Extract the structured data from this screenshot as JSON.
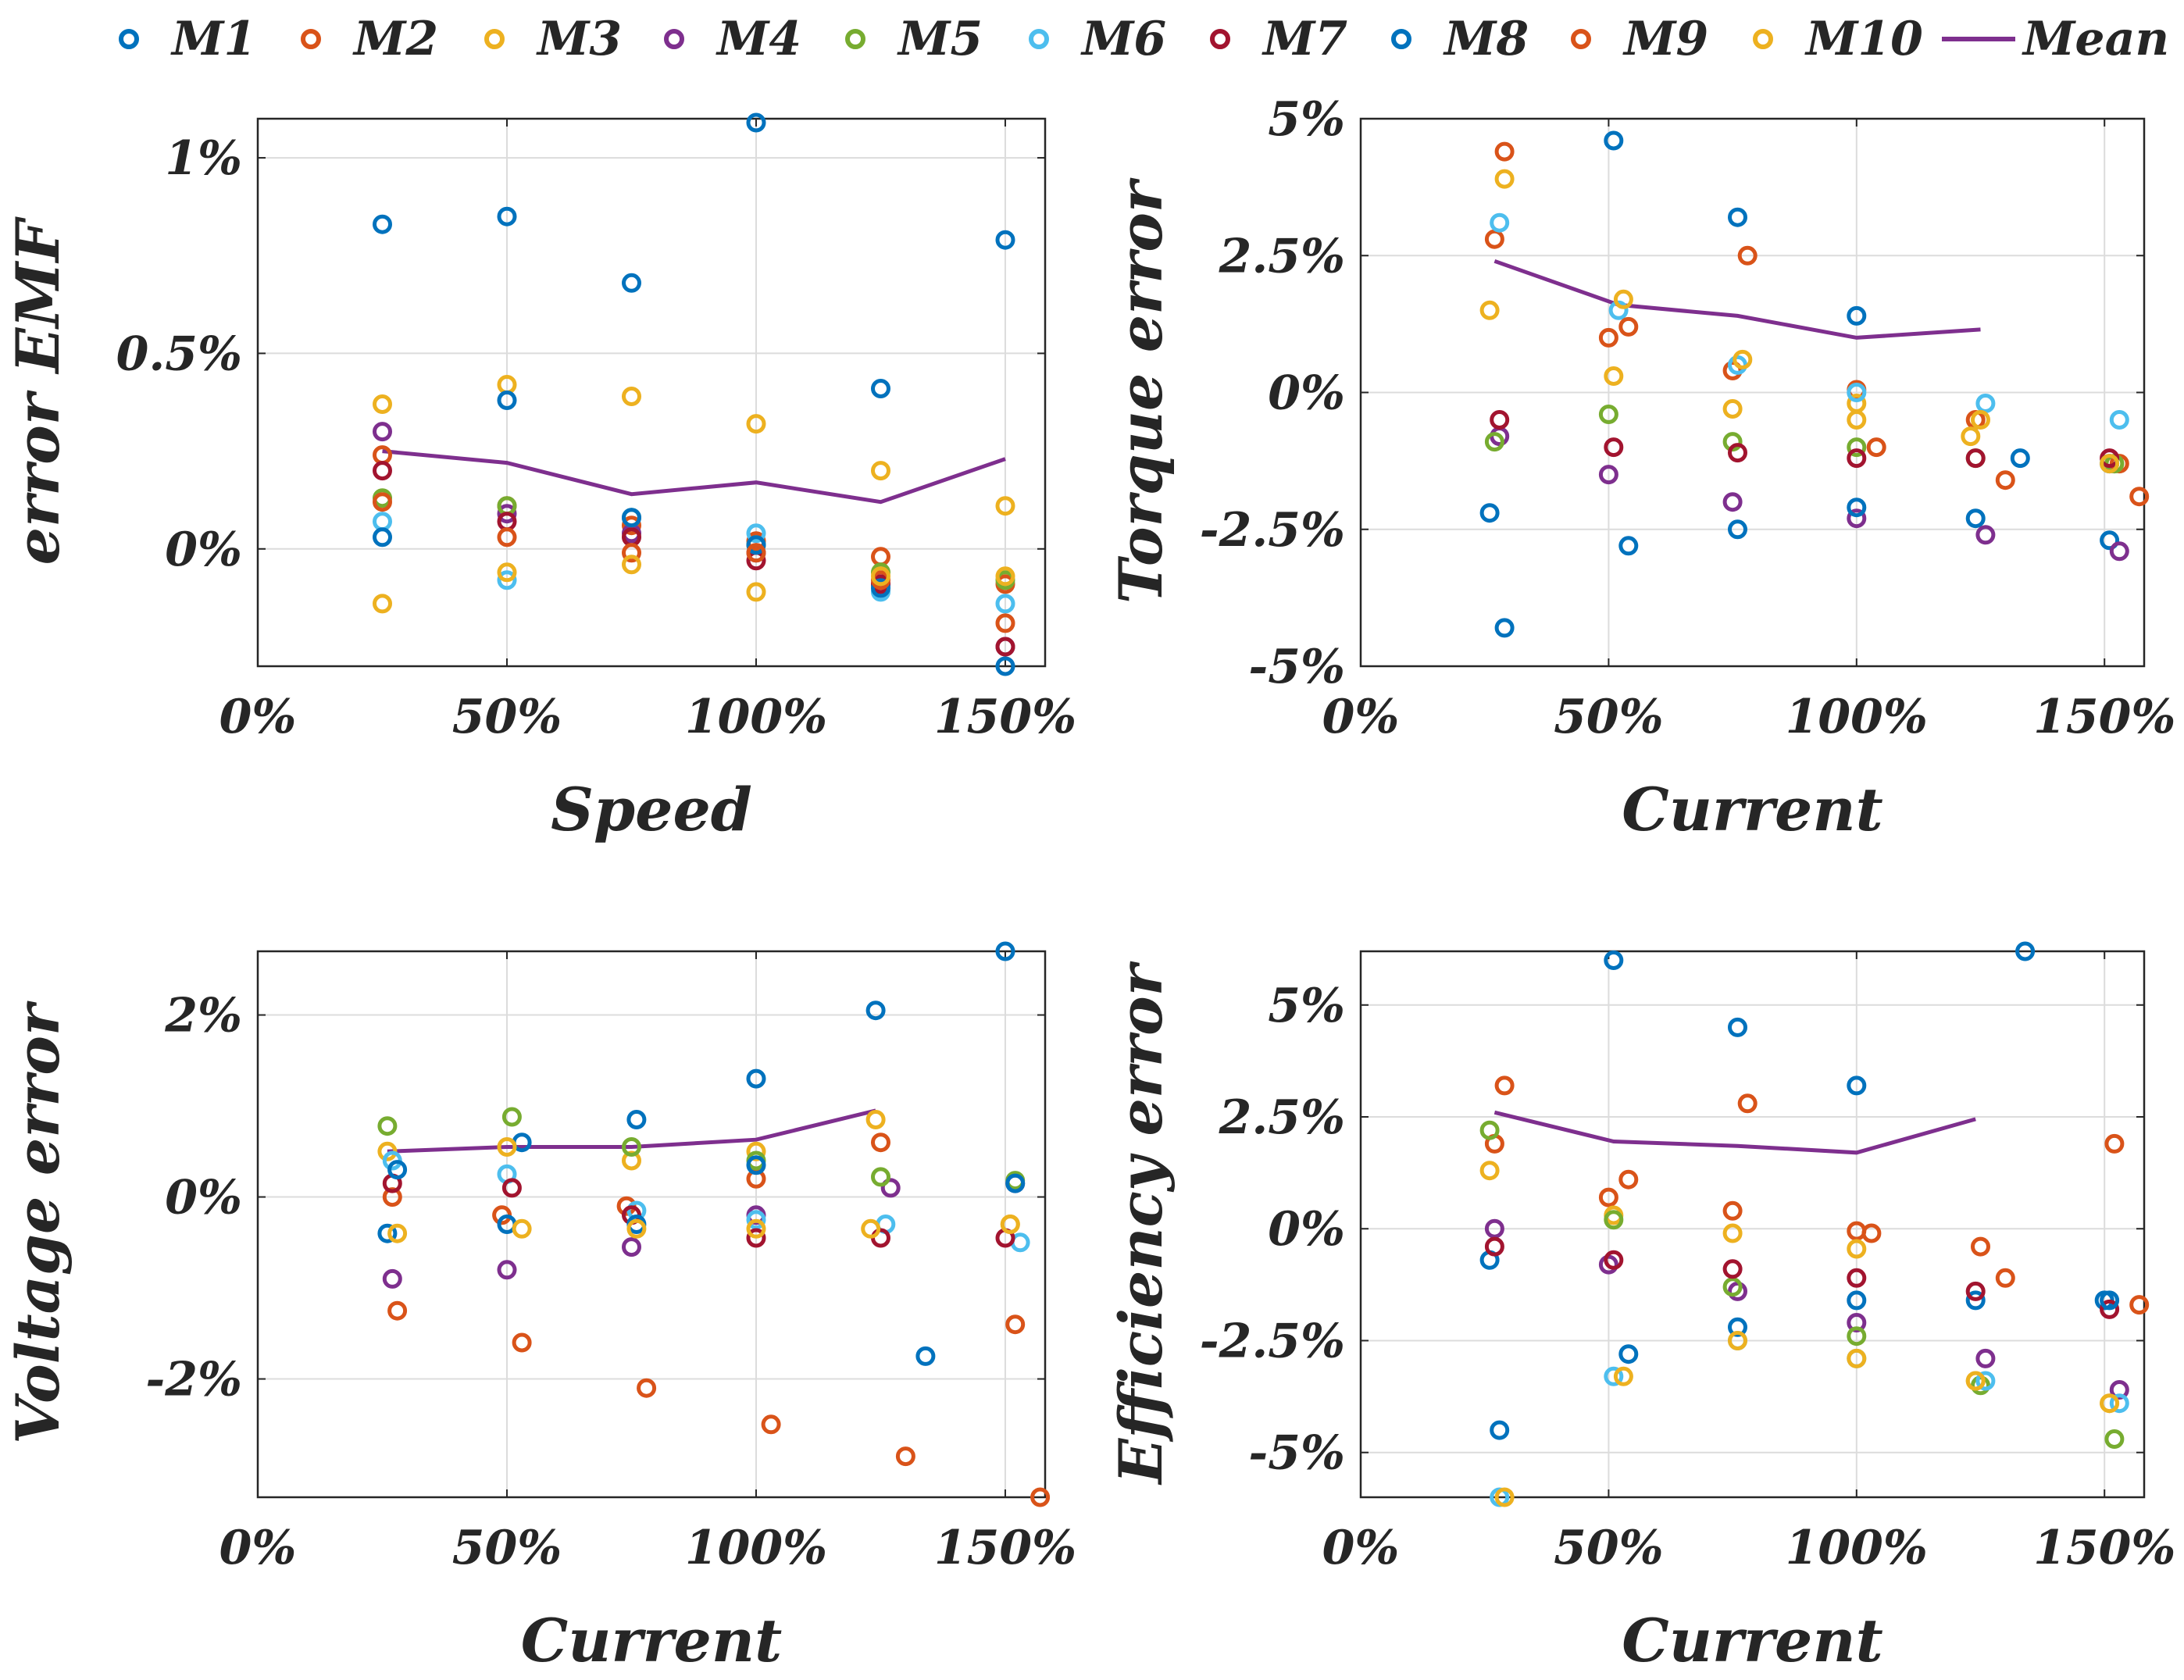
{
  "legend": {
    "entries": [
      {
        "name": "M1",
        "color": "#0072BD"
      },
      {
        "name": "M2",
        "color": "#D95319"
      },
      {
        "name": "M3",
        "color": "#EDB120"
      },
      {
        "name": "M4",
        "color": "#7E2F8E"
      },
      {
        "name": "M5",
        "color": "#77AC30"
      },
      {
        "name": "M6",
        "color": "#4DBEEE"
      },
      {
        "name": "M7",
        "color": "#A2142F"
      },
      {
        "name": "M8",
        "color": "#0072BD"
      },
      {
        "name": "M9",
        "color": "#D95319"
      },
      {
        "name": "M10",
        "color": "#EDB120"
      }
    ],
    "mean_label": "Mean",
    "mean_color": "#7E2F8E"
  },
  "chart_data": [
    {
      "type": "scatter",
      "xlabel": "Speed",
      "ylabel": "error EMF",
      "xlim": [
        0,
        158
      ],
      "ylim": [
        -0.3,
        1.1
      ],
      "xticks": [
        0,
        50,
        100,
        150
      ],
      "xtick_labels": [
        "0%",
        "50%",
        "100%",
        "150%"
      ],
      "yticks": [
        0,
        0.5,
        1
      ],
      "ytick_labels": [
        "0%",
        "0.5%",
        "1%"
      ],
      "grid": true,
      "series": [
        {
          "name": "M1",
          "x": [
            25,
            50,
            75,
            100,
            125,
            150
          ],
          "y": [
            0.83,
            0.85,
            0.68,
            1.09,
            0.41,
            0.79
          ]
        },
        {
          "name": "M2",
          "x": [
            25,
            50,
            75,
            100,
            125,
            150
          ],
          "y": [
            0.24,
            0.11,
            0.06,
            0.02,
            -0.02,
            -0.09
          ]
        },
        {
          "name": "M3",
          "x": [
            25,
            50,
            75,
            100,
            125,
            150
          ],
          "y": [
            0.37,
            0.42,
            0.39,
            0.32,
            0.2,
            0.11
          ]
        },
        {
          "name": "M4",
          "x": [
            25,
            50,
            75,
            100,
            125,
            150
          ],
          "y": [
            0.3,
            0.09,
            0.04,
            -0.01,
            -0.09,
            -0.25
          ]
        },
        {
          "name": "M5",
          "x": [
            25,
            50,
            75,
            100,
            125,
            150
          ],
          "y": [
            0.13,
            0.11,
            0.08,
            0.01,
            -0.06,
            -0.08
          ]
        },
        {
          "name": "M6",
          "x": [
            25,
            50,
            75,
            100,
            125,
            150
          ],
          "y": [
            0.07,
            -0.08,
            0.08,
            0.04,
            -0.11,
            -0.14
          ]
        },
        {
          "name": "M7",
          "x": [
            25,
            50,
            75,
            100,
            125,
            150
          ],
          "y": [
            0.2,
            0.07,
            0.03,
            -0.03,
            -0.09,
            -0.25
          ]
        },
        {
          "name": "M8",
          "x": [
            25,
            50,
            75,
            100,
            125,
            150
          ],
          "y": [
            0.03,
            0.38,
            0.08,
            0.01,
            -0.1,
            -0.3
          ]
        },
        {
          "name": "M9",
          "x": [
            25,
            50,
            75,
            100,
            125,
            150
          ],
          "y": [
            0.12,
            0.03,
            -0.01,
            -0.01,
            -0.08,
            -0.19
          ]
        },
        {
          "name": "M10",
          "x": [
            25,
            50,
            75,
            100,
            125,
            150
          ],
          "y": [
            -0.14,
            -0.06,
            -0.04,
            -0.11,
            -0.07,
            -0.07
          ]
        }
      ],
      "mean": {
        "x": [
          25,
          50,
          75,
          100,
          125,
          150
        ],
        "y": [
          0.25,
          0.22,
          0.14,
          0.17,
          0.12,
          0.23
        ]
      }
    },
    {
      "type": "scatter",
      "xlabel": "Current",
      "ylabel": "Torque error",
      "xlim": [
        0,
        158
      ],
      "ylim": [
        -5,
        5
      ],
      "xticks": [
        0,
        50,
        100,
        150
      ],
      "xtick_labels": [
        "0%",
        "50%",
        "100%",
        "150%"
      ],
      "yticks": [
        -5,
        -2.5,
        0,
        2.5,
        5
      ],
      "ytick_labels": [
        "-5%",
        "-2.5%",
        "0%",
        "2.5%",
        "5%"
      ],
      "grid": true,
      "series": [
        {
          "name": "M1",
          "x": [
            26,
            51,
            76,
            100,
            124,
            151
          ],
          "y": [
            -2.2,
            4.6,
            3.2,
            1.4,
            -2.3,
            -2.7
          ]
        },
        {
          "name": "M2",
          "x": [
            27,
            50,
            75,
            100,
            124,
            153
          ],
          "y": [
            2.8,
            1.0,
            0.4,
            0.05,
            -0.5,
            -1.3
          ]
        },
        {
          "name": "M3",
          "x": [
            26,
            51,
            75,
            100,
            123,
            152
          ],
          "y": [
            1.5,
            0.3,
            -0.3,
            -0.2,
            -0.8,
            -1.3
          ]
        },
        {
          "name": "M4",
          "x": [
            28,
            50,
            75,
            100,
            126,
            153
          ],
          "y": [
            -0.8,
            -1.5,
            -2.0,
            -2.3,
            -2.6,
            -2.9
          ]
        },
        {
          "name": "M5",
          "x": [
            27,
            50,
            75,
            100,
            124,
            152
          ],
          "y": [
            -0.9,
            -0.4,
            -0.9,
            -1.0,
            -1.2,
            -1.3
          ]
        },
        {
          "name": "M6",
          "x": [
            28,
            52,
            76,
            100,
            126,
            153
          ],
          "y": [
            3.1,
            1.5,
            0.5,
            0.0,
            -0.2,
            -0.5
          ]
        },
        {
          "name": "M7",
          "x": [
            28,
            51,
            76,
            100,
            124,
            151
          ],
          "y": [
            -0.5,
            -1.0,
            -1.1,
            -1.2,
            -1.2,
            -1.2
          ]
        },
        {
          "name": "M8",
          "x": [
            29,
            54,
            76,
            100,
            133,
            151
          ],
          "y": [
            -4.3,
            -2.8,
            -2.5,
            -2.1,
            -1.2,
            -1.3
          ]
        },
        {
          "name": "M9",
          "x": [
            29,
            54,
            78,
            104,
            130,
            157
          ],
          "y": [
            4.4,
            1.2,
            2.5,
            -1.0,
            -1.6,
            -1.9
          ]
        },
        {
          "name": "M10",
          "x": [
            29,
            53,
            77,
            100,
            125,
            151
          ],
          "y": [
            3.9,
            1.7,
            0.6,
            -0.5,
            -0.5,
            -1.3
          ]
        }
      ],
      "mean": {
        "x": [
          27,
          52,
          76,
          100,
          125
        ],
        "y": [
          2.4,
          1.6,
          1.4,
          1.0,
          1.15
        ]
      }
    },
    {
      "type": "scatter",
      "xlabel": "Current",
      "ylabel": "Voltage error",
      "xlim": [
        0,
        158
      ],
      "ylim": [
        -3.3,
        2.7
      ],
      "xticks": [
        0,
        50,
        100,
        150
      ],
      "xtick_labels": [
        "0%",
        "50%",
        "100%",
        "150%"
      ],
      "yticks": [
        -2,
        0,
        2
      ],
      "ytick_labels": [
        "-2%",
        "0%",
        "2%"
      ],
      "grid": true,
      "series": [
        {
          "name": "M1",
          "x": [
            26,
            53,
            76,
            100,
            124,
            150
          ],
          "y": [
            -0.4,
            0.6,
            0.85,
            1.3,
            2.05,
            2.7
          ]
        },
        {
          "name": "M2",
          "x": [
            27,
            49,
            74,
            100,
            125,
            152
          ],
          "y": [
            0.0,
            -0.2,
            -0.1,
            0.2,
            0.6,
            -1.4
          ]
        },
        {
          "name": "M3",
          "x": [
            26,
            50,
            75,
            100,
            124,
            151
          ],
          "y": [
            0.5,
            0.55,
            0.4,
            0.5,
            0.85,
            -0.3
          ]
        },
        {
          "name": "M4",
          "x": [
            27,
            50,
            75,
            100,
            127,
            152
          ],
          "y": [
            -0.9,
            -0.8,
            -0.55,
            -0.2,
            0.1,
            0.15
          ]
        },
        {
          "name": "M5",
          "x": [
            26,
            51,
            75,
            100,
            125,
            152
          ],
          "y": [
            0.78,
            0.88,
            0.55,
            0.4,
            0.22,
            0.18
          ]
        },
        {
          "name": "M6",
          "x": [
            27,
            50,
            76,
            100,
            126,
            153
          ],
          "y": [
            0.4,
            0.25,
            -0.15,
            -0.25,
            -0.3,
            -0.5
          ]
        },
        {
          "name": "M7",
          "x": [
            27,
            51,
            75,
            100,
            125,
            150
          ],
          "y": [
            0.15,
            0.1,
            -0.2,
            -0.45,
            -0.45,
            -0.45
          ]
        },
        {
          "name": "M8",
          "x": [
            28,
            50,
            76,
            100,
            134,
            152
          ],
          "y": [
            0.3,
            -0.3,
            -0.3,
            0.35,
            -1.75,
            0.15
          ]
        },
        {
          "name": "M9",
          "x": [
            28,
            53,
            78,
            103,
            130,
            157
          ],
          "y": [
            -1.25,
            -1.6,
            -2.1,
            -2.5,
            -2.85,
            -3.3
          ]
        },
        {
          "name": "M10",
          "x": [
            28,
            53,
            76,
            100,
            123,
            151
          ],
          "y": [
            -0.4,
            -0.35,
            -0.35,
            -0.35,
            -0.35,
            -0.3
          ]
        }
      ],
      "mean": {
        "x": [
          26,
          50,
          75,
          100,
          124
        ],
        "y": [
          0.5,
          0.55,
          0.55,
          0.63,
          0.95
        ]
      }
    },
    {
      "type": "scatter",
      "xlabel": "Current",
      "ylabel": "Efficiency error",
      "xlim": [
        0,
        158
      ],
      "ylim": [
        -6,
        6.2
      ],
      "xticks": [
        0,
        50,
        100,
        150
      ],
      "xtick_labels": [
        "0%",
        "50%",
        "100%",
        "150%"
      ],
      "yticks": [
        -5,
        -2.5,
        0,
        2.5,
        5
      ],
      "ytick_labels": [
        "-5%",
        "-2.5%",
        "0%",
        "2.5%",
        "5%"
      ],
      "grid": true,
      "series": [
        {
          "name": "M1",
          "x": [
            26,
            51,
            76,
            100,
            124,
            150
          ],
          "y": [
            -0.7,
            6.0,
            4.5,
            3.2,
            -1.6,
            -1.6
          ]
        },
        {
          "name": "M2",
          "x": [
            27,
            50,
            75,
            100,
            125,
            152
          ],
          "y": [
            1.9,
            0.7,
            0.4,
            -0.05,
            -0.4,
            1.9
          ]
        },
        {
          "name": "M3",
          "x": [
            26,
            51,
            75,
            100,
            124,
            151
          ],
          "y": [
            1.3,
            0.3,
            -0.1,
            -0.45,
            -3.4,
            -3.9
          ]
        },
        {
          "name": "M4",
          "x": [
            27,
            50,
            76,
            100,
            126,
            153
          ],
          "y": [
            0.0,
            -0.8,
            -1.4,
            -2.1,
            -2.9,
            -3.6
          ]
        },
        {
          "name": "M5",
          "x": [
            26,
            51,
            75,
            100,
            125,
            152
          ],
          "y": [
            2.2,
            0.2,
            -1.3,
            -2.4,
            -3.5,
            -4.7
          ]
        },
        {
          "name": "M6",
          "x": [
            28,
            51,
            76,
            100,
            126,
            153
          ],
          "y": [
            -6.0,
            -3.3,
            -2.5,
            -2.9,
            -3.4,
            -3.9
          ]
        },
        {
          "name": "M7",
          "x": [
            27,
            51,
            75,
            100,
            124,
            151
          ],
          "y": [
            -0.4,
            -0.7,
            -0.9,
            -1.1,
            -1.4,
            -1.8
          ]
        },
        {
          "name": "M8",
          "x": [
            28,
            54,
            76,
            100,
            134,
            151
          ],
          "y": [
            -4.5,
            -2.8,
            -2.2,
            -1.6,
            6.2,
            -1.6
          ]
        },
        {
          "name": "M9",
          "x": [
            29,
            54,
            78,
            103,
            130,
            157
          ],
          "y": [
            3.2,
            1.1,
            2.8,
            -0.1,
            -1.1,
            -1.7
          ]
        },
        {
          "name": "M10",
          "x": [
            29,
            53,
            76,
            100,
            124,
            151
          ],
          "y": [
            -6.0,
            -3.3,
            -2.5,
            -2.9,
            -3.4,
            -3.9
          ]
        }
      ],
      "mean": {
        "x": [
          27,
          51,
          76,
          100,
          124
        ],
        "y": [
          2.6,
          1.95,
          1.85,
          1.7,
          2.45
        ]
      }
    }
  ]
}
